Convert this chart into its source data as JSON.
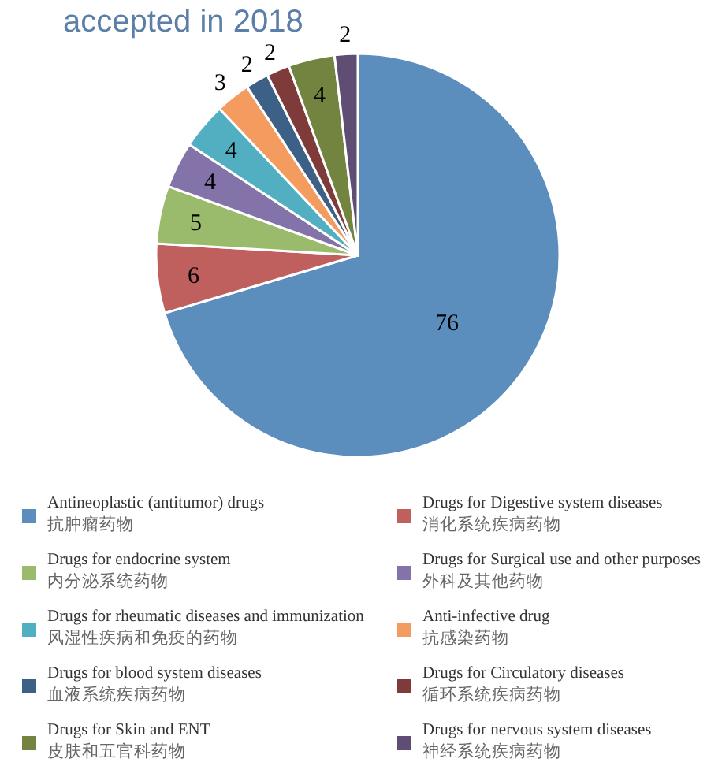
{
  "chart_data": {
    "type": "pie",
    "title": "accepted in 2018",
    "categories": [
      "Antineoplastic (antitumor) drugs\n抗肿瘤药物",
      "Drugs for Digestive system diseases\n消化系统疾病药物",
      "Drugs for endocrine system\n内分泌系统药物",
      "Drugs for Surgical use and other purposes\n外科及其他药物",
      "Drugs for rheumatic diseases and immunization\n风湿性疾病和免疫的药物",
      "Anti-infective drug\n抗感染药物",
      "Drugs for blood system diseases\n血液系统疾病药物",
      "Drugs for Circulatory diseases\n循环系统疾病药物",
      "Drugs for Skin and ENT\n皮肤和五官科药物",
      "Drugs for nervous system diseases\n神经系统疾病药物"
    ],
    "values": [
      76,
      6,
      5,
      4,
      4,
      3,
      2,
      2,
      4,
      2
    ],
    "colors": [
      "#5b8dbd",
      "#c0605e",
      "#9bbb6c",
      "#8473a8",
      "#52afc2",
      "#f49b5f",
      "#3d6186",
      "#7f3b3a",
      "#72843f",
      "#5f4d74"
    ],
    "data_labels": true,
    "legend": "bottom"
  }
}
